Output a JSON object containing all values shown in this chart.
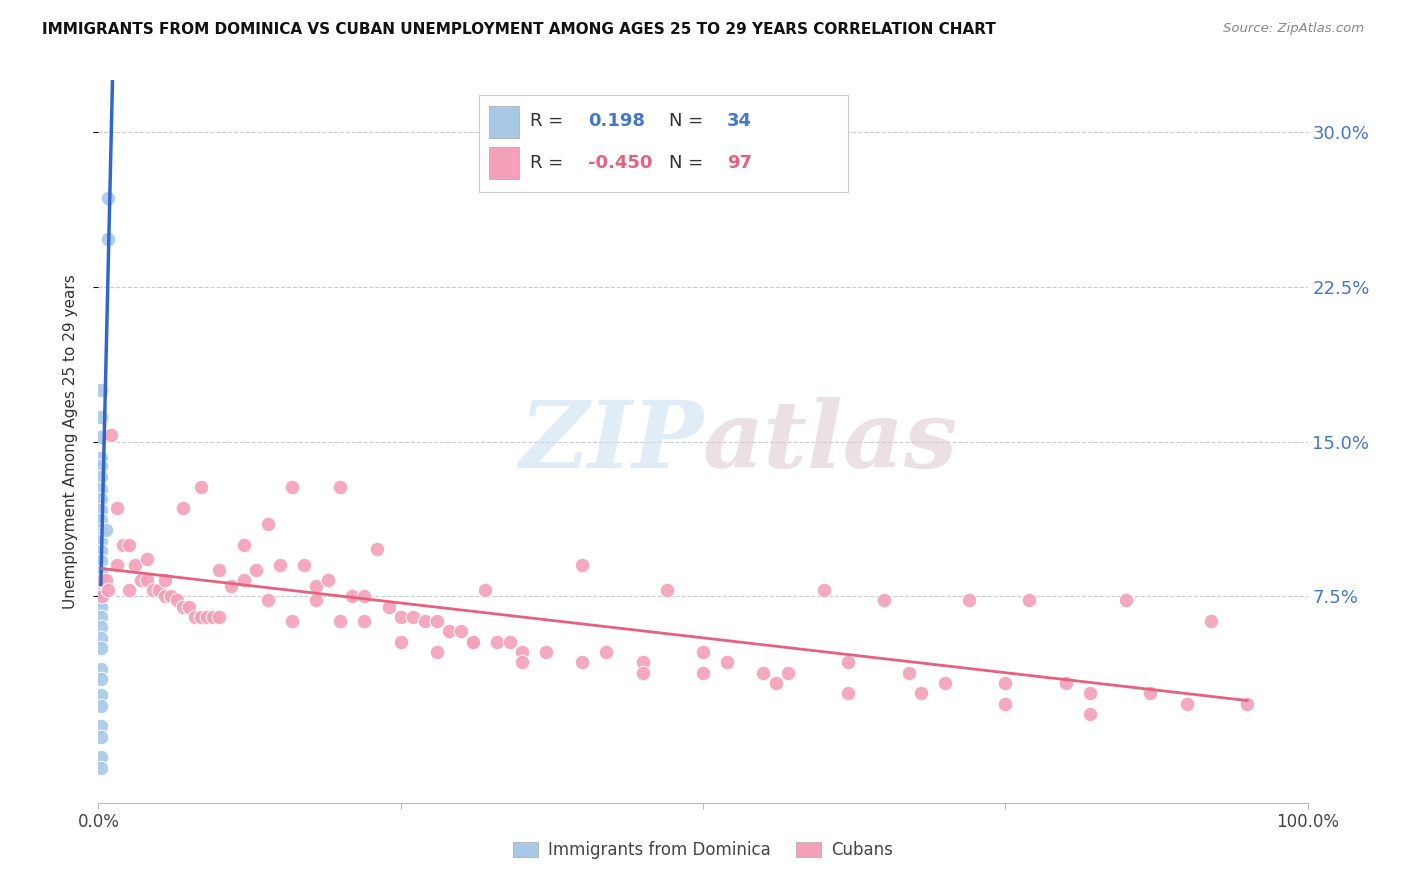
{
  "title": "IMMIGRANTS FROM DOMINICA VS CUBAN UNEMPLOYMENT AMONG AGES 25 TO 29 YEARS CORRELATION CHART",
  "source": "Source: ZipAtlas.com",
  "ylabel": "Unemployment Among Ages 25 to 29 years",
  "ytick_labels": [
    "7.5%",
    "15.0%",
    "22.5%",
    "30.0%"
  ],
  "ytick_values": [
    0.075,
    0.15,
    0.225,
    0.3
  ],
  "xlim": [
    0.0,
    1.0
  ],
  "ylim": [
    -0.025,
    0.325
  ],
  "legend_blue_r": "0.198",
  "legend_blue_n": "34",
  "legend_pink_r": "-0.450",
  "legend_pink_n": "97",
  "blue_color": "#a8c8e8",
  "pink_color": "#f4a0b8",
  "blue_line_color": "#3366cc",
  "pink_line_color": "#e86080",
  "dashed_line_color": "#88aadd",
  "watermark_zip": "ZIP",
  "watermark_atlas": "atlas",
  "blue_scatter_x": [
    0.008,
    0.008,
    0.002,
    0.002,
    0.002,
    0.002,
    0.002,
    0.002,
    0.002,
    0.002,
    0.002,
    0.002,
    0.002,
    0.002,
    0.002,
    0.002,
    0.002,
    0.002,
    0.002,
    0.002,
    0.002,
    0.002,
    0.002,
    0.002,
    0.002,
    0.002,
    0.002,
    0.002,
    0.002,
    0.006,
    0.002,
    0.002,
    0.002,
    0.002
  ],
  "blue_scatter_y": [
    0.268,
    0.248,
    0.175,
    0.162,
    0.152,
    0.142,
    0.138,
    0.133,
    0.127,
    0.122,
    0.117,
    0.112,
    0.107,
    0.102,
    0.097,
    0.092,
    0.087,
    0.082,
    0.077,
    0.073,
    0.07,
    0.065,
    0.06,
    0.055,
    0.05,
    0.04,
    0.035,
    0.027,
    0.022,
    0.107,
    0.012,
    0.007,
    -0.003,
    -0.008
  ],
  "pink_scatter_x": [
    0.003,
    0.006,
    0.01,
    0.015,
    0.02,
    0.025,
    0.03,
    0.035,
    0.04,
    0.045,
    0.05,
    0.055,
    0.06,
    0.065,
    0.07,
    0.075,
    0.08,
    0.085,
    0.09,
    0.095,
    0.1,
    0.11,
    0.12,
    0.13,
    0.14,
    0.15,
    0.16,
    0.17,
    0.18,
    0.19,
    0.2,
    0.21,
    0.22,
    0.23,
    0.24,
    0.25,
    0.26,
    0.27,
    0.28,
    0.29,
    0.3,
    0.31,
    0.32,
    0.33,
    0.34,
    0.35,
    0.37,
    0.4,
    0.42,
    0.45,
    0.47,
    0.5,
    0.52,
    0.55,
    0.57,
    0.6,
    0.62,
    0.65,
    0.67,
    0.7,
    0.72,
    0.75,
    0.77,
    0.8,
    0.82,
    0.85,
    0.87,
    0.9,
    0.92,
    0.95,
    0.003,
    0.008,
    0.015,
    0.025,
    0.04,
    0.055,
    0.07,
    0.085,
    0.1,
    0.12,
    0.14,
    0.16,
    0.18,
    0.2,
    0.22,
    0.25,
    0.28,
    0.31,
    0.35,
    0.4,
    0.45,
    0.5,
    0.56,
    0.62,
    0.68,
    0.75,
    0.82
  ],
  "pink_scatter_y": [
    0.083,
    0.083,
    0.153,
    0.09,
    0.1,
    0.1,
    0.09,
    0.083,
    0.083,
    0.078,
    0.078,
    0.075,
    0.075,
    0.073,
    0.07,
    0.07,
    0.065,
    0.065,
    0.065,
    0.065,
    0.065,
    0.08,
    0.1,
    0.088,
    0.11,
    0.09,
    0.128,
    0.09,
    0.08,
    0.083,
    0.128,
    0.075,
    0.075,
    0.098,
    0.07,
    0.065,
    0.065,
    0.063,
    0.063,
    0.058,
    0.058,
    0.053,
    0.078,
    0.053,
    0.053,
    0.048,
    0.048,
    0.09,
    0.048,
    0.043,
    0.078,
    0.048,
    0.043,
    0.038,
    0.038,
    0.078,
    0.043,
    0.073,
    0.038,
    0.033,
    0.073,
    0.033,
    0.073,
    0.033,
    0.028,
    0.073,
    0.028,
    0.023,
    0.063,
    0.023,
    0.075,
    0.078,
    0.118,
    0.078,
    0.093,
    0.083,
    0.118,
    0.128,
    0.088,
    0.083,
    0.073,
    0.063,
    0.073,
    0.063,
    0.063,
    0.053,
    0.048,
    0.053,
    0.043,
    0.043,
    0.038,
    0.038,
    0.033,
    0.028,
    0.028,
    0.023,
    0.018
  ]
}
